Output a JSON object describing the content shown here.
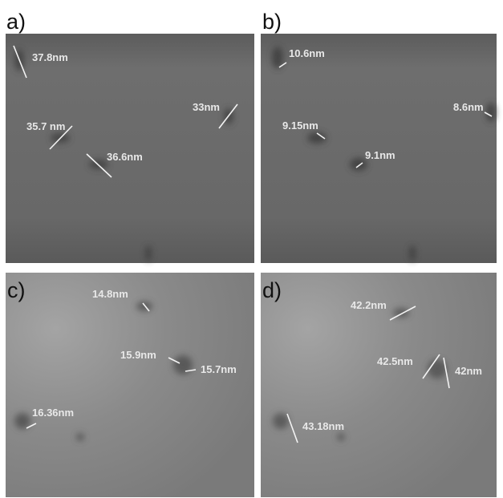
{
  "panels": [
    {
      "label": "a)",
      "annotations": [
        "37.8nm",
        "35.7 nm",
        "36.6nm",
        "33nm"
      ]
    },
    {
      "label": "b)",
      "annotations": [
        "10.6nm",
        "9.15nm",
        "9.1nm",
        "8.6nm"
      ]
    },
    {
      "label": "c)",
      "annotations": [
        "14.8nm",
        "15.9nm",
        "15.7nm",
        "16.36nm"
      ]
    },
    {
      "label": "d)",
      "annotations": [
        "42.2nm",
        "42.5nm",
        "42nm",
        "43.18nm"
      ]
    }
  ]
}
